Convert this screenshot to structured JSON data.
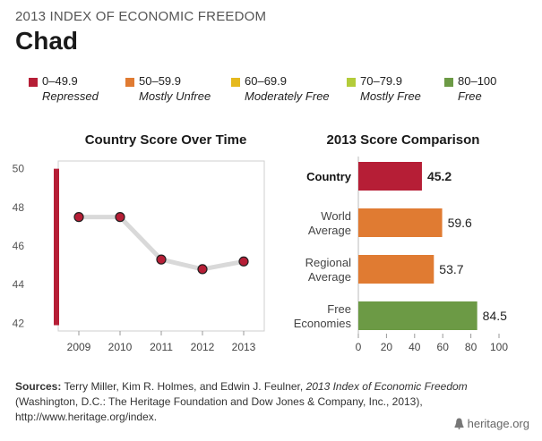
{
  "header": {
    "supertitle": "2013 INDEX OF ECONOMIC FREEDOM",
    "country": "Chad"
  },
  "legend": [
    {
      "range": "0–49.9",
      "label": "Repressed",
      "color": "#b61e36"
    },
    {
      "range": "50–59.9",
      "label": "Mostly Unfree",
      "color": "#e07b32"
    },
    {
      "range": "60–69.9",
      "label": "Moderately Free",
      "color": "#e5b91e"
    },
    {
      "range": "70–79.9",
      "label": "Mostly Free",
      "color": "#b3cc3a"
    },
    {
      "range": "80–100",
      "label": "Free",
      "color": "#6c9a45"
    }
  ],
  "chart_data": [
    {
      "type": "line",
      "title": "Country Score Over Time",
      "x": [
        "2009",
        "2010",
        "2011",
        "2012",
        "2013"
      ],
      "y": [
        47.5,
        47.5,
        45.3,
        44.8,
        45.2
      ],
      "yticks": [
        42,
        44,
        46,
        48,
        50
      ],
      "ylim": [
        41.6,
        50.4
      ],
      "band": {
        "from": 41.9,
        "to": 50,
        "color": "#b61e36",
        "label": "Repressed"
      },
      "line_color": "#d9d9d9",
      "marker_color": "#b61e36"
    },
    {
      "type": "bar",
      "title": "2013 Score Comparison",
      "categories": [
        {
          "line1": "Country",
          "line2": "",
          "bold": true
        },
        {
          "line1": "World",
          "line2": "Average",
          "bold": false
        },
        {
          "line1": "Regional",
          "line2": "Average",
          "bold": false
        },
        {
          "line1": "Free",
          "line2": "Economies",
          "bold": false
        }
      ],
      "values": [
        45.2,
        59.6,
        53.7,
        84.5
      ],
      "value_labels": [
        "45.2",
        "59.6",
        "53.7",
        "84.5"
      ],
      "colors": [
        "#b61e36",
        "#e07b32",
        "#e07b32",
        "#6c9a45"
      ],
      "xticks": [
        0,
        20,
        40,
        60,
        80,
        100
      ],
      "xlim": [
        0,
        100
      ]
    }
  ],
  "sources": {
    "label": "Sources:",
    "text1": " Terry Miller, Kim R. Holmes, and Edwin J. Feulner, ",
    "italic": "2013 Index of Economic Freedom",
    "text2": " (Washington, D.C.: The Heritage Foundation and Dow Jones & Company, Inc., 2013), http://www.heritage.org/index."
  },
  "brand": {
    "text": "heritage.org",
    "icon": "liberty-bell-icon"
  }
}
